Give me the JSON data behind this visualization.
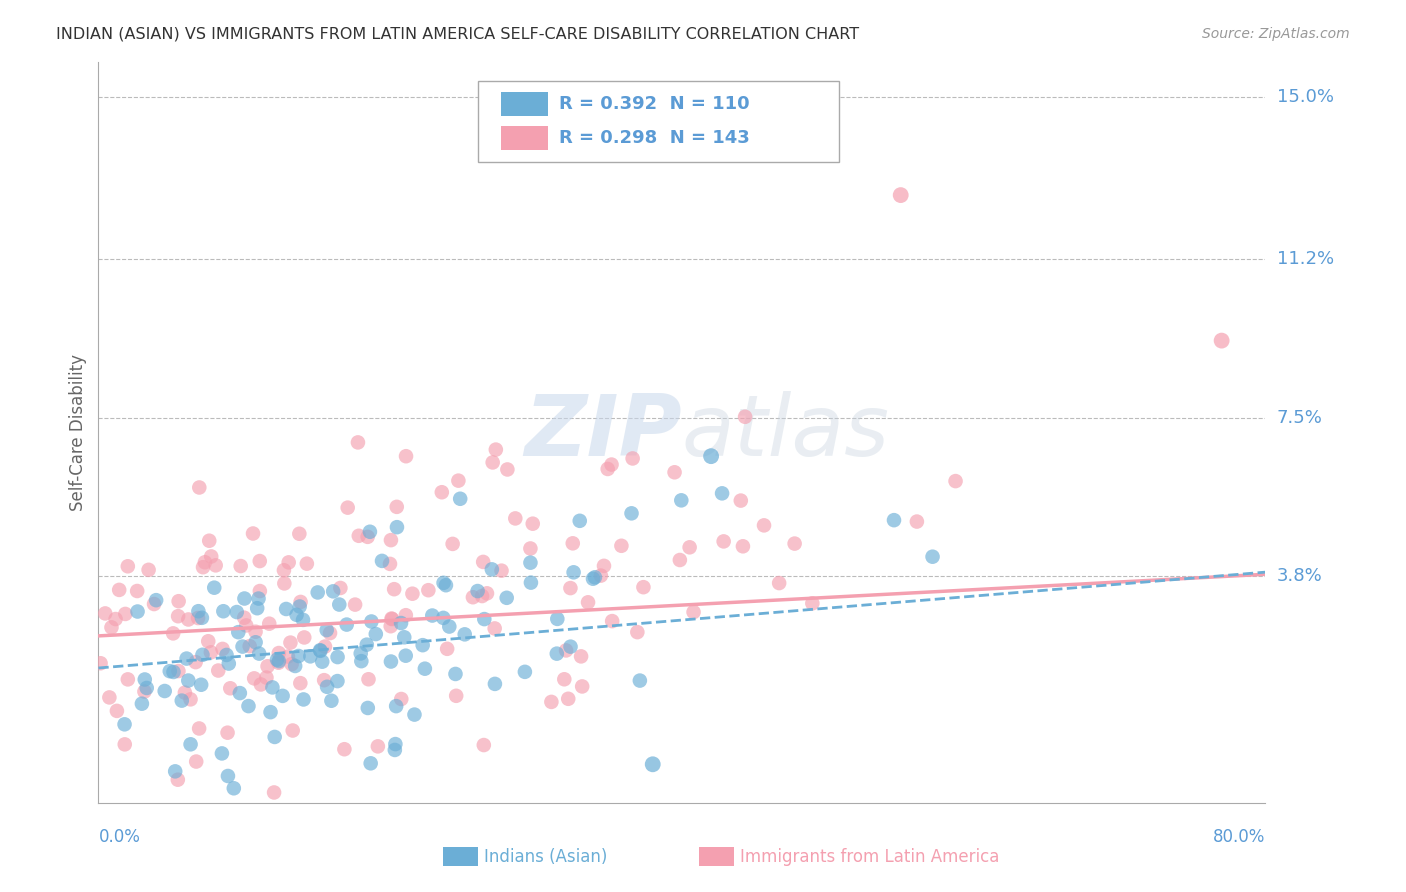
{
  "title": "INDIAN (ASIAN) VS IMMIGRANTS FROM LATIN AMERICA SELF-CARE DISABILITY CORRELATION CHART",
  "source": "Source: ZipAtlas.com",
  "ylabel": "Self-Care Disability",
  "xmin": 0.0,
  "xmax": 0.8,
  "ymin": -0.015,
  "ymax": 0.158,
  "series1_name": "Indians (Asian)",
  "series1_color": "#6baed6",
  "series1_R": 0.392,
  "series1_N": 110,
  "series2_name": "Immigrants from Latin America",
  "series2_color": "#f4a0b0",
  "series2_R": 0.298,
  "series2_N": 143,
  "background_color": "#ffffff",
  "grid_color": "#bbbbbb",
  "title_color": "#333333",
  "tick_label_color": "#5b9bd5",
  "ytick_vals": [
    0.038,
    0.075,
    0.112,
    0.15
  ],
  "ytick_labels": [
    "3.8%",
    "7.5%",
    "11.2%",
    "15.0%"
  ],
  "xtick_left_label": "0.0%",
  "xtick_right_label": "80.0%",
  "legend_label1": "R = 0.392  N = 110",
  "legend_label2": "R = 0.298  N = 143",
  "line1_intercept": 0.0165,
  "line1_slope": 0.028,
  "line2_intercept": 0.024,
  "line2_slope": 0.018
}
